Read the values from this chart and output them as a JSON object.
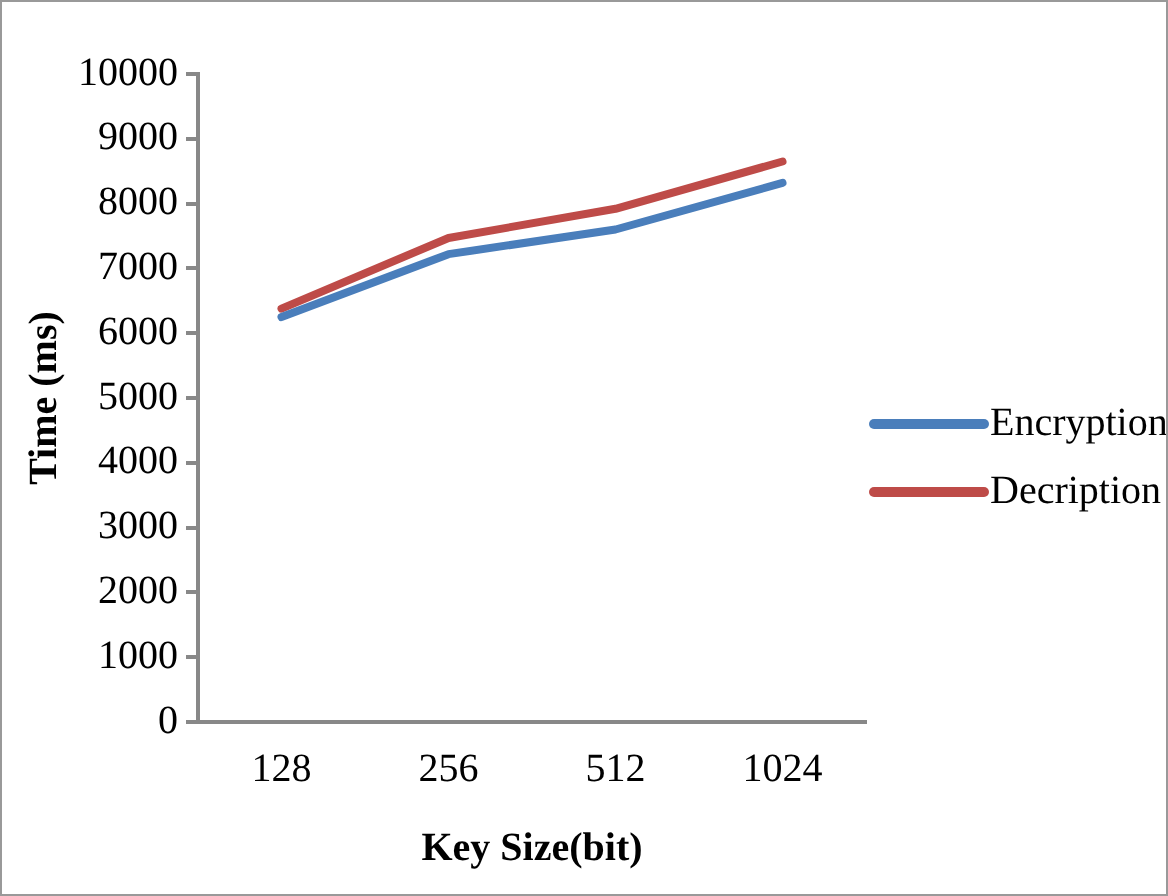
{
  "chart_data": {
    "type": "line",
    "xlabel": "Key Size(bit)",
    "ylabel": "Time (ms)",
    "categories": [
      "128",
      "256",
      "512",
      "1024"
    ],
    "series": [
      {
        "name": "Encryption",
        "color": "#4a7ebb",
        "values": [
          6250,
          7220,
          7600,
          8320
        ]
      },
      {
        "name": "Decription",
        "color": "#be4b48",
        "values": [
          6380,
          7470,
          7920,
          8650
        ]
      }
    ],
    "ylim": [
      0,
      10000
    ],
    "yticks": [
      0,
      1000,
      2000,
      3000,
      4000,
      5000,
      6000,
      7000,
      8000,
      9000,
      10000
    ],
    "grid": false,
    "legend": "right",
    "marker": "none",
    "line_style": "solid"
  }
}
